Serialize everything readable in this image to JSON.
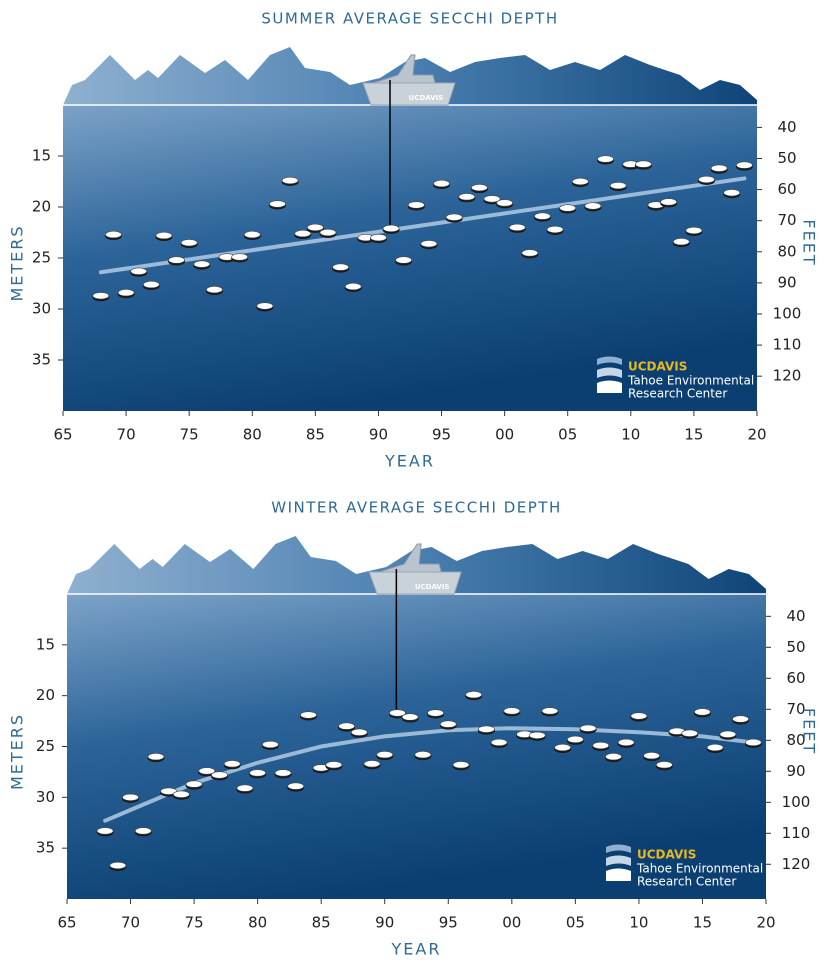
{
  "chart_data": [
    {
      "type": "scatter",
      "title": "SUMMER AVERAGE SECCHI DEPTH",
      "x_label": "YEAR",
      "y_label": "METERS",
      "y2_label": "FEET",
      "x": [
        1968,
        1969,
        1970,
        1971,
        1972,
        1973,
        1974,
        1975,
        1976,
        1977,
        1978,
        1979,
        1980,
        1981,
        1982,
        1983,
        1984,
        1985,
        1986,
        1987,
        1988,
        1989,
        1990,
        1991,
        1992,
        1993,
        1994,
        1995,
        1996,
        1997,
        1998,
        1999,
        2000,
        2001,
        2002,
        2003,
        2004,
        2005,
        2006,
        2007,
        2008,
        2009,
        2010,
        2011,
        2012,
        2013,
        2014,
        2015,
        2016,
        2017,
        2018,
        2019
      ],
      "values": [
        28.7,
        22.7,
        28.4,
        26.3,
        27.6,
        22.8,
        25.2,
        23.5,
        25.6,
        28.1,
        24.9,
        24.9,
        22.7,
        29.7,
        19.7,
        17.4,
        22.6,
        22.0,
        22.5,
        25.9,
        27.8,
        23.0,
        23.0,
        22.1,
        25.2,
        19.8,
        23.6,
        17.7,
        21.0,
        19.0,
        18.1,
        19.2,
        19.6,
        22.0,
        24.5,
        20.9,
        22.2,
        20.1,
        17.5,
        19.9,
        15.3,
        17.9,
        15.8,
        15.8,
        19.8,
        19.5,
        23.4,
        22.3,
        17.3,
        16.2,
        18.6,
        15.9
      ],
      "color": "#ffffff",
      "trend": {
        "x": [
          1968,
          2019
        ],
        "values": [
          26.4,
          17.2
        ],
        "color": "#a9c4e0"
      },
      "xlim": [
        1965,
        2020
      ],
      "xticks": [
        {
          "value": 1965,
          "label": "65"
        },
        {
          "value": 1970,
          "label": "70"
        },
        {
          "value": 1975,
          "label": "75"
        },
        {
          "value": 1980,
          "label": "80"
        },
        {
          "value": 1985,
          "label": "85"
        },
        {
          "value": 1990,
          "label": "90"
        },
        {
          "value": 1995,
          "label": "95"
        },
        {
          "value": 2000,
          "label": "00"
        },
        {
          "value": 2005,
          "label": "05"
        },
        {
          "value": 2010,
          "label": "10"
        },
        {
          "value": 2015,
          "label": "15"
        },
        {
          "value": 2020,
          "label": "20"
        }
      ],
      "ylim": [
        40,
        10
      ],
      "yticks": [
        15,
        20,
        25,
        30,
        35
      ],
      "y2lim": [
        131.2,
        32.8
      ],
      "y2ticks": [
        40,
        50,
        60,
        70,
        80,
        90,
        100,
        110,
        120
      ],
      "boat_label": "UCDAVIS",
      "logo": {
        "brand": "UCDAVIS",
        "line1": "Tahoe Environmental",
        "line2": "Research Center"
      }
    },
    {
      "type": "scatter",
      "title": "WINTER AVERAGE SECCHI DEPTH",
      "x_label": "YEAR",
      "y_label": "METERS",
      "y2_label": "FEET",
      "x": [
        1968,
        1969,
        1970,
        1971,
        1972,
        1973,
        1974,
        1975,
        1976,
        1977,
        1978,
        1979,
        1980,
        1981,
        1982,
        1983,
        1984,
        1985,
        1986,
        1987,
        1988,
        1989,
        1990,
        1991,
        1992,
        1993,
        1994,
        1995,
        1996,
        1997,
        1998,
        1999,
        2000,
        2001,
        2002,
        2003,
        2004,
        2005,
        2006,
        2007,
        2008,
        2009,
        2010,
        2011,
        2012,
        2013,
        2014,
        2015,
        2016,
        2017,
        2018,
        2019
      ],
      "values": [
        33.3,
        36.7,
        30.0,
        33.3,
        26.0,
        29.4,
        29.7,
        28.7,
        27.4,
        27.8,
        26.7,
        29.1,
        27.6,
        24.8,
        27.6,
        28.9,
        21.9,
        27.1,
        26.8,
        23.0,
        23.6,
        26.7,
        25.8,
        21.7,
        22.1,
        25.8,
        21.7,
        22.8,
        26.8,
        19.9,
        23.3,
        24.6,
        21.5,
        23.8,
        23.9,
        21.5,
        25.1,
        24.3,
        23.2,
        24.9,
        26.0,
        24.6,
        22.0,
        25.9,
        26.8,
        23.5,
        23.7,
        21.6,
        25.1,
        23.8,
        22.3,
        24.6
      ],
      "color": "#ffffff",
      "trend": {
        "x": [
          1968,
          1975,
          1980,
          1985,
          1990,
          1995,
          2000,
          2005,
          2010,
          2015,
          2019
        ],
        "values": [
          32.3,
          28.6,
          26.6,
          25.0,
          24.0,
          23.4,
          23.2,
          23.3,
          23.6,
          24.0,
          24.6
        ],
        "color": "#a9c4e0"
      },
      "xlim": [
        1965,
        2020
      ],
      "xticks": [
        {
          "value": 1965,
          "label": "65"
        },
        {
          "value": 1970,
          "label": "70"
        },
        {
          "value": 1975,
          "label": "75"
        },
        {
          "value": 1980,
          "label": "80"
        },
        {
          "value": 1985,
          "label": "85"
        },
        {
          "value": 1990,
          "label": "90"
        },
        {
          "value": 1995,
          "label": "95"
        },
        {
          "value": 2000,
          "label": "00"
        },
        {
          "value": 2005,
          "label": "05"
        },
        {
          "value": 2010,
          "label": "10"
        },
        {
          "value": 2015,
          "label": "15"
        },
        {
          "value": 2020,
          "label": "20"
        }
      ],
      "ylim": [
        40,
        10
      ],
      "yticks": [
        15,
        20,
        25,
        30,
        35
      ],
      "y2lim": [
        131.2,
        32.8
      ],
      "y2ticks": [
        40,
        50,
        60,
        70,
        80,
        90,
        100,
        110,
        120
      ],
      "boat_label": "UCDAVIS",
      "logo": {
        "brand": "UCDAVIS",
        "line1": "Tahoe Environmental",
        "line2": "Research Center"
      }
    }
  ]
}
